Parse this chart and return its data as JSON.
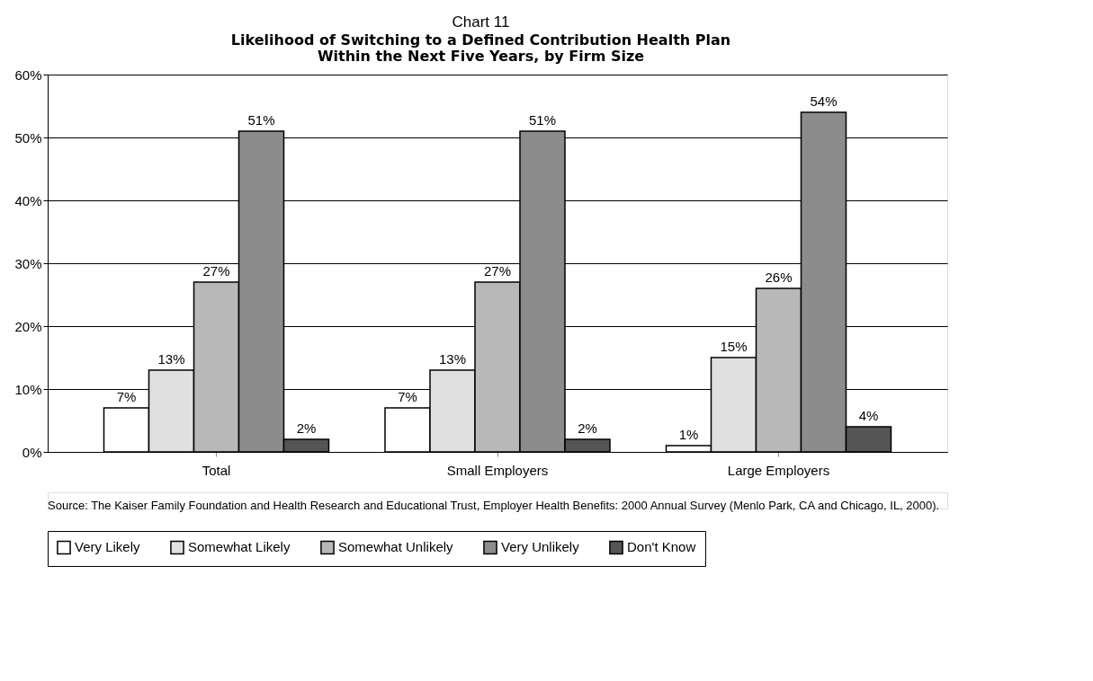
{
  "chart_data": {
    "type": "bar",
    "title": "Chart 11",
    "subtitle": "Likelihood of Switching to a Defined Contribution Health Plan\nWithin the Next Five Years, by Firm Size",
    "categories": [
      "Total",
      "Small Employers",
      "Large Employers"
    ],
    "series": [
      {
        "name": "Very Likely",
        "color": "#ffffff",
        "values": [
          7,
          7,
          1
        ],
        "value_labels": [
          "7%",
          "7%",
          "1%"
        ]
      },
      {
        "name": "Somewhat Likely",
        "color": "#e0e0e0",
        "values": [
          13,
          13,
          15
        ],
        "value_labels": [
          "13%",
          "13%",
          "15%"
        ]
      },
      {
        "name": "Somewhat Unlikely",
        "color": "#b8b8b8",
        "values": [
          27,
          27,
          26
        ],
        "value_labels": [
          "27%",
          "27%",
          "26%"
        ]
      },
      {
        "name": "Very Unlikely",
        "color": "#8c8c8c",
        "values": [
          51,
          51,
          54
        ],
        "value_labels": [
          "51%",
          "51%",
          "54%"
        ]
      },
      {
        "name": "Don't Know",
        "color": "#555555",
        "values": [
          2,
          2,
          4
        ],
        "value_labels": [
          "2%",
          "2%",
          "4%"
        ]
      }
    ],
    "ylim": [
      0,
      60
    ],
    "yticks": [
      {
        "value": 0,
        "label": "0%"
      },
      {
        "value": 10,
        "label": "10%"
      },
      {
        "value": 20,
        "label": "20%"
      },
      {
        "value": 30,
        "label": "30%"
      },
      {
        "value": 40,
        "label": "40%"
      },
      {
        "value": 50,
        "label": "50%"
      },
      {
        "value": 60,
        "label": "60%"
      }
    ],
    "grid": "y",
    "legend": "bottom",
    "annotations": [
      "Source: The Kaiser Family Foundation and Health Research and Educational Trust, Employer Health Benefits: 2000 Annual Survey (Menlo Park, CA and Chicago, IL, 2000)."
    ]
  }
}
